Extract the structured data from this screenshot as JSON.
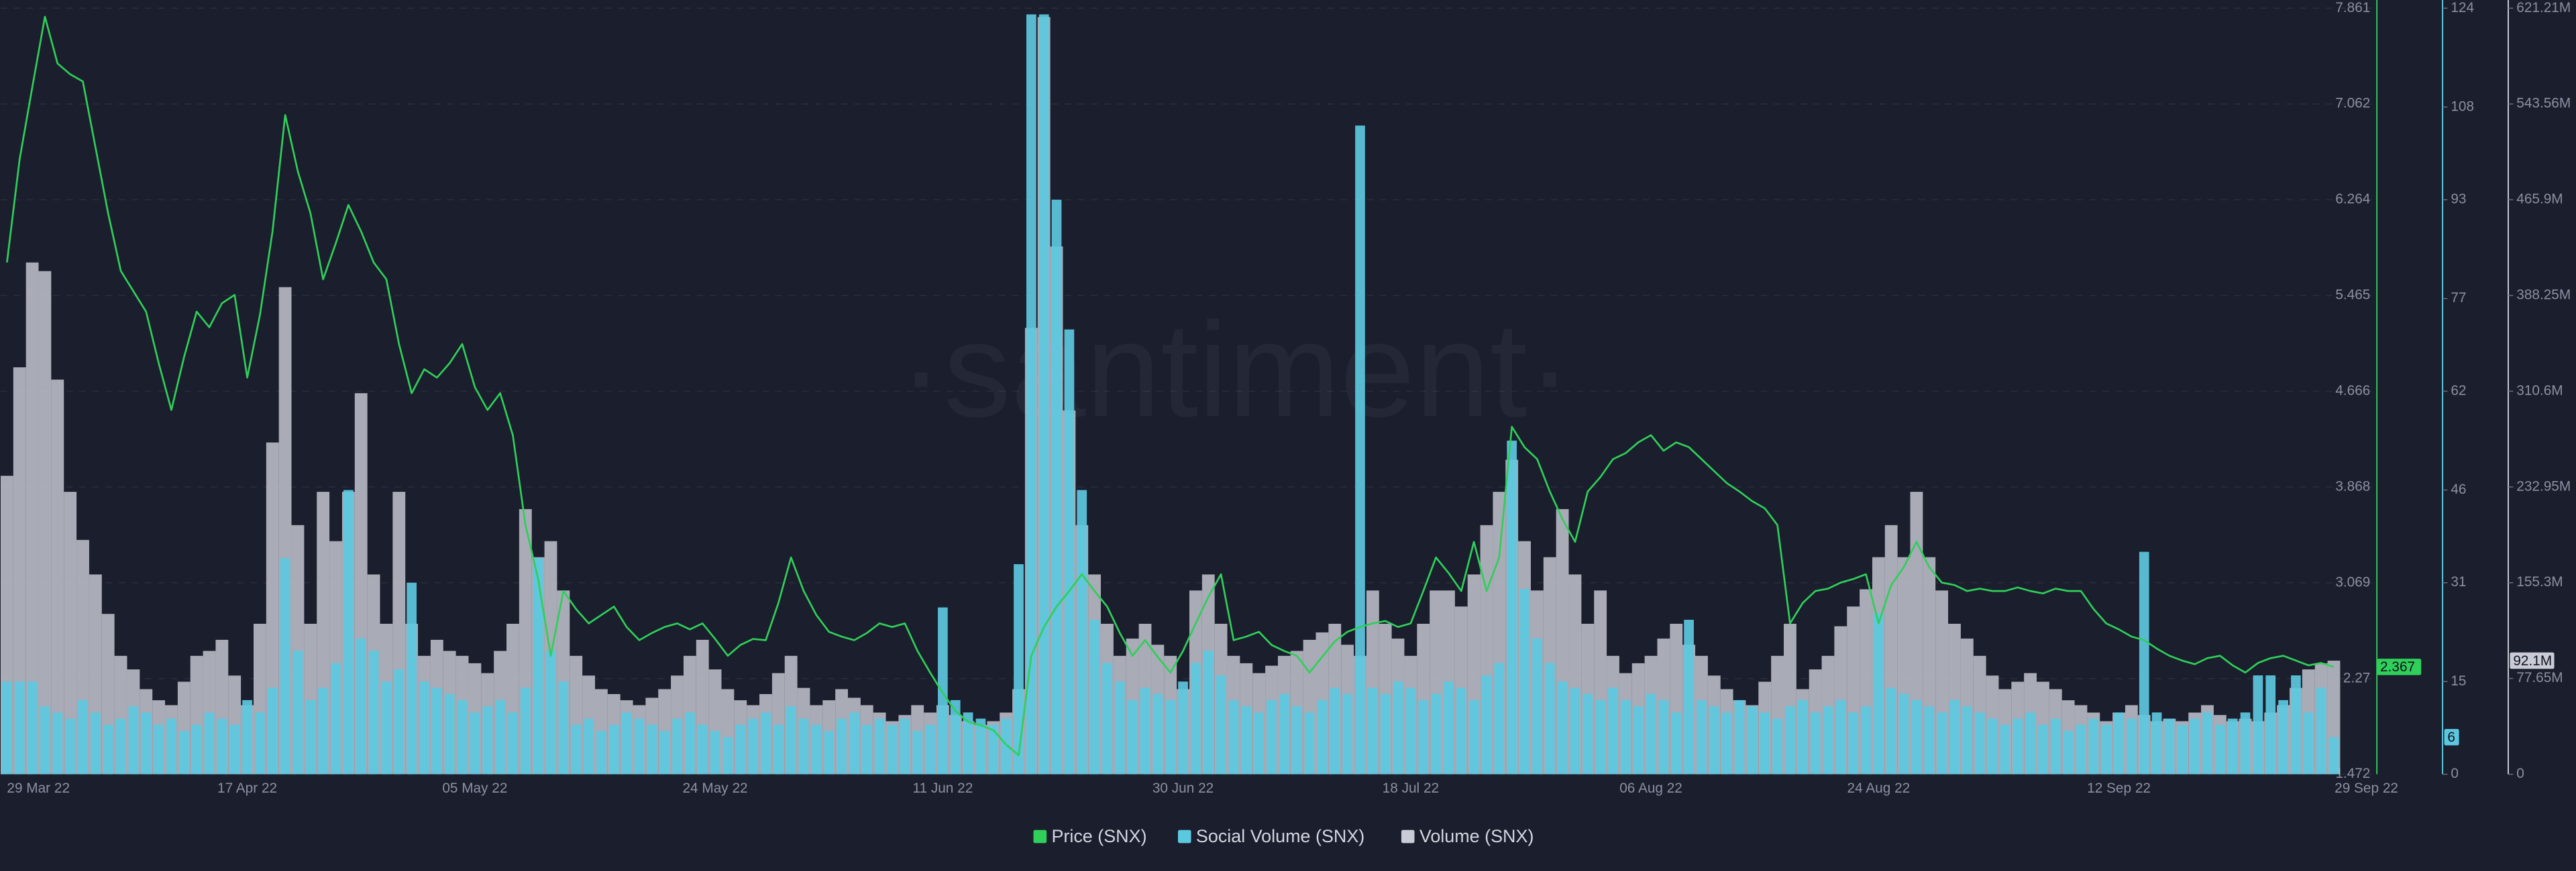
{
  "chart_data": {
    "type": "combo",
    "watermark": "·santiment·",
    "categories": [
      "29 Mar 22",
      null,
      null,
      null,
      null,
      null,
      null,
      null,
      null,
      null,
      null,
      null,
      null,
      null,
      null,
      null,
      null,
      null,
      null,
      "17 Apr 22",
      null,
      null,
      null,
      null,
      null,
      null,
      null,
      null,
      null,
      null,
      null,
      null,
      null,
      null,
      null,
      null,
      null,
      "05 May 22",
      null,
      null,
      null,
      null,
      null,
      null,
      null,
      null,
      null,
      null,
      null,
      null,
      null,
      null,
      null,
      null,
      null,
      null,
      "24 May 22",
      null,
      null,
      null,
      null,
      null,
      null,
      null,
      null,
      null,
      null,
      null,
      null,
      null,
      null,
      null,
      null,
      null,
      "11 Jun 22",
      null,
      null,
      null,
      null,
      null,
      null,
      null,
      null,
      null,
      null,
      null,
      null,
      null,
      null,
      null,
      null,
      null,
      null,
      "30 Jun 22",
      null,
      null,
      null,
      null,
      null,
      null,
      null,
      null,
      null,
      null,
      null,
      null,
      null,
      null,
      null,
      null,
      null,
      "18 Jul 22",
      null,
      null,
      null,
      null,
      null,
      null,
      null,
      null,
      null,
      null,
      null,
      null,
      null,
      null,
      null,
      null,
      null,
      null,
      "06 Aug 22",
      null,
      null,
      null,
      null,
      null,
      null,
      null,
      null,
      null,
      null,
      null,
      null,
      null,
      null,
      null,
      null,
      null,
      "24 Aug 22",
      null,
      null,
      null,
      null,
      null,
      null,
      null,
      null,
      null,
      null,
      null,
      null,
      null,
      null,
      null,
      null,
      null,
      null,
      "12 Sep 22",
      null,
      null,
      null,
      null,
      null,
      null,
      null,
      null,
      null,
      null,
      null,
      null,
      null,
      null,
      null,
      null,
      "29 Sep 22"
    ],
    "ylim": [
      1.472,
      7.861
    ],
    "yticks": [
      1.472,
      2.27,
      3.069,
      3.868,
      4.666,
      5.465,
      6.264,
      7.062,
      7.861
    ],
    "y2lim": [
      0,
      124
    ],
    "y2ticks": [
      0,
      15,
      31,
      46,
      62,
      77,
      93,
      108,
      124
    ],
    "y3lim": [
      0,
      621210000
    ],
    "y3ticks": [
      0,
      {
        "value": 77650000,
        "label": "77.65M"
      },
      {
        "value": 155300000,
        "label": "155.3M"
      },
      {
        "value": 232950000,
        "label": "232.95M"
      },
      {
        "value": 310600000,
        "label": "310.6M"
      },
      {
        "value": 388250000,
        "label": "388.25M"
      },
      {
        "value": 465900000,
        "label": "465.9M"
      },
      {
        "value": 543560000,
        "label": "543.56M"
      },
      {
        "value": 621210000,
        "label": "621.21M"
      }
    ],
    "grid": true,
    "series": [
      {
        "name": "Price (SNX)",
        "type": "line",
        "axis": "y",
        "color": "#2fcf5a",
        "values": [
          5.74,
          6.6,
          7.2,
          7.79,
          7.4,
          7.31,
          7.25,
          6.7,
          6.15,
          5.67,
          5.5,
          5.33,
          4.9,
          4.51,
          4.95,
          5.33,
          5.2,
          5.4,
          5.47,
          4.78,
          5.3,
          6.0,
          6.97,
          6.5,
          6.15,
          5.6,
          5.9,
          6.22,
          6.0,
          5.74,
          5.6,
          5.06,
          4.65,
          4.85,
          4.78,
          4.9,
          5.06,
          4.7,
          4.51,
          4.65,
          4.3,
          3.55,
          3.1,
          2.46,
          3.0,
          2.85,
          2.73,
          2.8,
          2.87,
          2.7,
          2.59,
          2.65,
          2.7,
          2.73,
          2.68,
          2.73,
          2.6,
          2.46,
          2.55,
          2.6,
          2.59,
          2.9,
          3.28,
          3.0,
          2.8,
          2.66,
          2.62,
          2.59,
          2.65,
          2.73,
          2.7,
          2.73,
          2.5,
          2.32,
          2.15,
          2.0,
          1.91,
          1.88,
          1.84,
          1.72,
          1.63,
          2.46,
          2.7,
          2.87,
          3.0,
          3.14,
          3.0,
          2.87,
          2.65,
          2.46,
          2.59,
          2.45,
          2.32,
          2.5,
          2.73,
          2.95,
          3.14,
          2.59,
          2.62,
          2.66,
          2.55,
          2.5,
          2.46,
          2.32,
          2.45,
          2.58,
          2.66,
          2.7,
          2.73,
          2.75,
          2.7,
          2.73,
          3.0,
          3.28,
          3.15,
          3.0,
          3.41,
          3.0,
          3.28,
          4.37,
          4.2,
          4.1,
          3.83,
          3.6,
          3.41,
          3.83,
          3.95,
          4.1,
          4.15,
          4.24,
          4.3,
          4.17,
          4.24,
          4.2,
          4.1,
          4.0,
          3.9,
          3.83,
          3.75,
          3.69,
          3.55,
          2.73,
          2.9,
          3.0,
          3.02,
          3.07,
          3.1,
          3.14,
          2.73,
          3.05,
          3.2,
          3.41,
          3.2,
          3.07,
          3.05,
          3.0,
          3.02,
          3.0,
          3.0,
          3.03,
          3.0,
          2.98,
          3.02,
          3.0,
          3.0,
          2.85,
          2.73,
          2.68,
          2.62,
          2.59,
          2.52,
          2.46,
          2.42,
          2.39,
          2.44,
          2.46,
          2.38,
          2.32,
          2.4,
          2.44,
          2.46,
          2.42,
          2.38,
          2.4,
          2.367
        ]
      },
      {
        "name": "Social Volume (SNX)",
        "type": "bar",
        "axis": "y2",
        "color": "#5cc8df",
        "values": [
          15,
          15,
          15,
          11,
          10,
          9,
          12,
          10,
          8,
          9,
          11,
          10,
          8,
          9,
          7,
          8,
          10,
          9,
          8,
          12,
          10,
          14,
          35,
          20,
          12,
          14,
          18,
          46,
          22,
          20,
          15,
          17,
          31,
          15,
          14,
          13,
          12,
          10,
          11,
          12,
          10,
          14,
          35,
          20,
          15,
          8,
          9,
          7,
          8,
          10,
          9,
          8,
          7,
          9,
          10,
          8,
          7,
          6,
          8,
          9,
          10,
          8,
          11,
          9,
          8,
          7,
          9,
          10,
          8,
          9,
          8,
          9,
          7,
          8,
          27,
          12,
          10,
          9,
          8,
          9,
          34,
          123,
          123,
          93,
          72,
          46,
          25,
          18,
          15,
          12,
          14,
          13,
          12,
          15,
          18,
          20,
          16,
          12,
          11,
          10,
          12,
          13,
          11,
          10,
          12,
          14,
          13,
          105,
          14,
          13,
          15,
          14,
          12,
          13,
          15,
          14,
          12,
          16,
          18,
          54,
          30,
          22,
          18,
          15,
          14,
          13,
          12,
          14,
          12,
          11,
          13,
          12,
          10,
          25,
          12,
          11,
          10,
          12,
          11,
          10,
          9,
          11,
          12,
          10,
          11,
          12,
          10,
          11,
          26,
          14,
          13,
          12,
          11,
          10,
          12,
          11,
          10,
          9,
          8,
          9,
          10,
          8,
          9,
          7,
          8,
          9,
          8,
          10,
          9,
          36,
          10,
          9,
          8,
          9,
          10,
          8,
          9,
          10,
          16,
          16,
          12,
          16,
          10,
          14,
          6
        ]
      },
      {
        "name": "Volume (SNX)",
        "type": "bar",
        "axis": "y3",
        "color": "#c9cbd6",
        "last_value_label": "92.1M",
        "values": [
          242000000,
          330000000,
          415000000,
          408000000,
          320000000,
          229000000,
          190000000,
          162000000,
          130000000,
          96000000,
          85000000,
          69000000,
          60000000,
          56000000,
          75000000,
          96000000,
          100000000,
          109000000,
          80000000,
          56000000,
          122000000,
          269000000,
          395000000,
          202000000,
          122000000,
          229000000,
          189000000,
          229000000,
          309000000,
          162000000,
          122000000,
          229000000,
          122000000,
          96000000,
          109000000,
          100000000,
          96000000,
          90000000,
          82000000,
          100000000,
          122000000,
          215000000,
          176000000,
          189000000,
          149000000,
          96000000,
          80000000,
          69000000,
          65000000,
          60000000,
          56000000,
          62000000,
          69000000,
          80000000,
          96000000,
          109000000,
          85000000,
          69000000,
          60000000,
          56000000,
          65000000,
          82000000,
          96000000,
          70000000,
          56000000,
          60000000,
          69000000,
          62000000,
          56000000,
          50000000,
          43000000,
          48000000,
          56000000,
          50000000,
          56000000,
          48000000,
          43000000,
          40000000,
          43000000,
          50000000,
          69000000,
          362000000,
          614000000,
          428000000,
          295000000,
          202000000,
          162000000,
          122000000,
          96000000,
          110000000,
          122000000,
          105000000,
          96000000,
          69000000,
          149000000,
          162000000,
          122000000,
          96000000,
          90000000,
          82000000,
          88000000,
          96000000,
          100000000,
          109000000,
          115000000,
          122000000,
          105000000,
          96000000,
          149000000,
          122000000,
          110000000,
          96000000,
          122000000,
          149000000,
          149000000,
          136000000,
          162000000,
          202000000,
          229000000,
          255000000,
          189000000,
          149000000,
          176000000,
          215000000,
          162000000,
          122000000,
          149000000,
          96000000,
          82000000,
          90000000,
          96000000,
          110000000,
          122000000,
          105000000,
          96000000,
          80000000,
          69000000,
          60000000,
          56000000,
          75000000,
          96000000,
          122000000,
          69000000,
          85000000,
          96000000,
          120000000,
          136000000,
          150000000,
          176000000,
          202000000,
          176000000,
          229000000,
          176000000,
          149000000,
          122000000,
          110000000,
          96000000,
          80000000,
          69000000,
          75000000,
          82000000,
          75000000,
          69000000,
          60000000,
          56000000,
          50000000,
          43000000,
          50000000,
          56000000,
          48000000,
          43000000,
          45000000,
          43000000,
          50000000,
          56000000,
          48000000,
          43000000,
          45000000,
          43000000,
          50000000,
          56000000,
          70000000,
          85000000,
          90000000,
          92100000
        ]
      }
    ]
  }
}
